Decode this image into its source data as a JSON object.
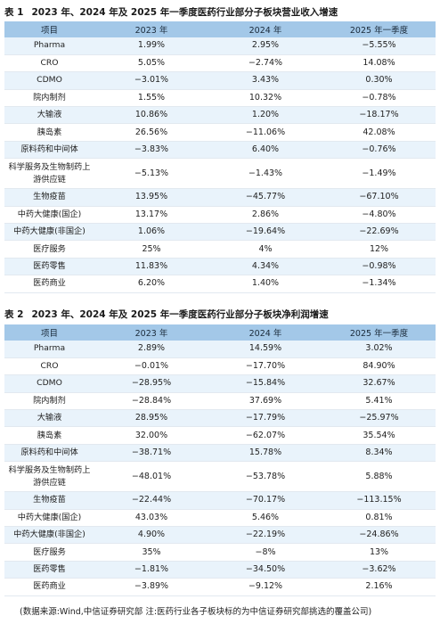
{
  "table1": {
    "caption_num": "表 1",
    "caption_text": "2023 年、2024 年及 2025 年一季度医药行业部分子板块营业收入增速",
    "headers": [
      "项目",
      "2023 年",
      "2024 年",
      "2025 年一季度"
    ],
    "rows": [
      {
        "name": "Pharma",
        "v2023": "1.99%",
        "v2024": "2.95%",
        "v2025q1": "−5.55%"
      },
      {
        "name": "CRO",
        "v2023": "5.05%",
        "v2024": "−2.74%",
        "v2025q1": "14.08%"
      },
      {
        "name": "CDMO",
        "v2023": "−3.01%",
        "v2024": "3.43%",
        "v2025q1": "0.30%"
      },
      {
        "name": "院内制剂",
        "v2023": "1.55%",
        "v2024": "10.32%",
        "v2025q1": "−0.78%"
      },
      {
        "name": "大输液",
        "v2023": "10.86%",
        "v2024": "1.20%",
        "v2025q1": "−18.17%"
      },
      {
        "name": "胰岛素",
        "v2023": "26.56%",
        "v2024": "−11.06%",
        "v2025q1": "42.08%"
      },
      {
        "name": "原料药和中间体",
        "v2023": "−3.83%",
        "v2024": "6.40%",
        "v2025q1": "−0.76%"
      },
      {
        "name": "科学服务及生物制药上游供应链",
        "v2023": "−5.13%",
        "v2024": "−1.43%",
        "v2025q1": "−1.49%"
      },
      {
        "name": "生物疫苗",
        "v2023": "13.95%",
        "v2024": "−45.77%",
        "v2025q1": "−67.10%"
      },
      {
        "name": "中药大健康(国企)",
        "v2023": "13.17%",
        "v2024": "2.86%",
        "v2025q1": "−4.80%"
      },
      {
        "name": "中药大健康(非国企)",
        "v2023": "1.06%",
        "v2024": "−19.64%",
        "v2025q1": "−22.69%"
      },
      {
        "name": "医疗服务",
        "v2023": "25%",
        "v2024": "4%",
        "v2025q1": "12%"
      },
      {
        "name": "医药零售",
        "v2023": "11.83%",
        "v2024": "4.34%",
        "v2025q1": "−0.98%"
      },
      {
        "name": "医药商业",
        "v2023": "6.20%",
        "v2024": "1.40%",
        "v2025q1": "−1.34%"
      }
    ]
  },
  "table2": {
    "caption_num": "表 2",
    "caption_text": "2023 年、2024 年及 2025 年一季度医药行业部分子板块净利润增速",
    "headers": [
      "项目",
      "2023 年",
      "2024 年",
      "2025 年一季度"
    ],
    "rows": [
      {
        "name": "Pharma",
        "v2023": "2.89%",
        "v2024": "14.59%",
        "v2025q1": "3.02%"
      },
      {
        "name": "CRO",
        "v2023": "−0.01%",
        "v2024": "−17.70%",
        "v2025q1": "84.90%"
      },
      {
        "name": "CDMO",
        "v2023": "−28.95%",
        "v2024": "−15.84%",
        "v2025q1": "32.67%"
      },
      {
        "name": "院内制剂",
        "v2023": "−28.84%",
        "v2024": "37.69%",
        "v2025q1": "5.41%"
      },
      {
        "name": "大输液",
        "v2023": "28.95%",
        "v2024": "−17.79%",
        "v2025q1": "−25.97%"
      },
      {
        "name": "胰岛素",
        "v2023": "32.00%",
        "v2024": "−62.07%",
        "v2025q1": "35.54%"
      },
      {
        "name": "原料药和中间体",
        "v2023": "−38.71%",
        "v2024": "15.78%",
        "v2025q1": "8.34%"
      },
      {
        "name": "科学服务及生物制药上游供应链",
        "v2023": "−48.01%",
        "v2024": "−53.78%",
        "v2025q1": "5.88%"
      },
      {
        "name": "生物疫苗",
        "v2023": "−22.44%",
        "v2024": "−70.17%",
        "v2025q1": "−113.15%"
      },
      {
        "name": "中药大健康(国企)",
        "v2023": "43.03%",
        "v2024": "5.46%",
        "v2025q1": "0.81%"
      },
      {
        "name": "中药大健康(非国企)",
        "v2023": "4.90%",
        "v2024": "−22.19%",
        "v2025q1": "−24.86%"
      },
      {
        "name": "医疗服务",
        "v2023": "35%",
        "v2024": "−8%",
        "v2025q1": "13%"
      },
      {
        "name": "医药零售",
        "v2023": "−1.81%",
        "v2024": "−34.50%",
        "v2025q1": "−3.62%"
      },
      {
        "name": "医药商业",
        "v2023": "−3.89%",
        "v2024": "−9.12%",
        "v2025q1": "2.16%"
      }
    ]
  },
  "source_note": "(数据来源:Wind,中信证券研究部 注:医药行业各子板块标的为中信证券研究部挑选的覆盖公司)"
}
